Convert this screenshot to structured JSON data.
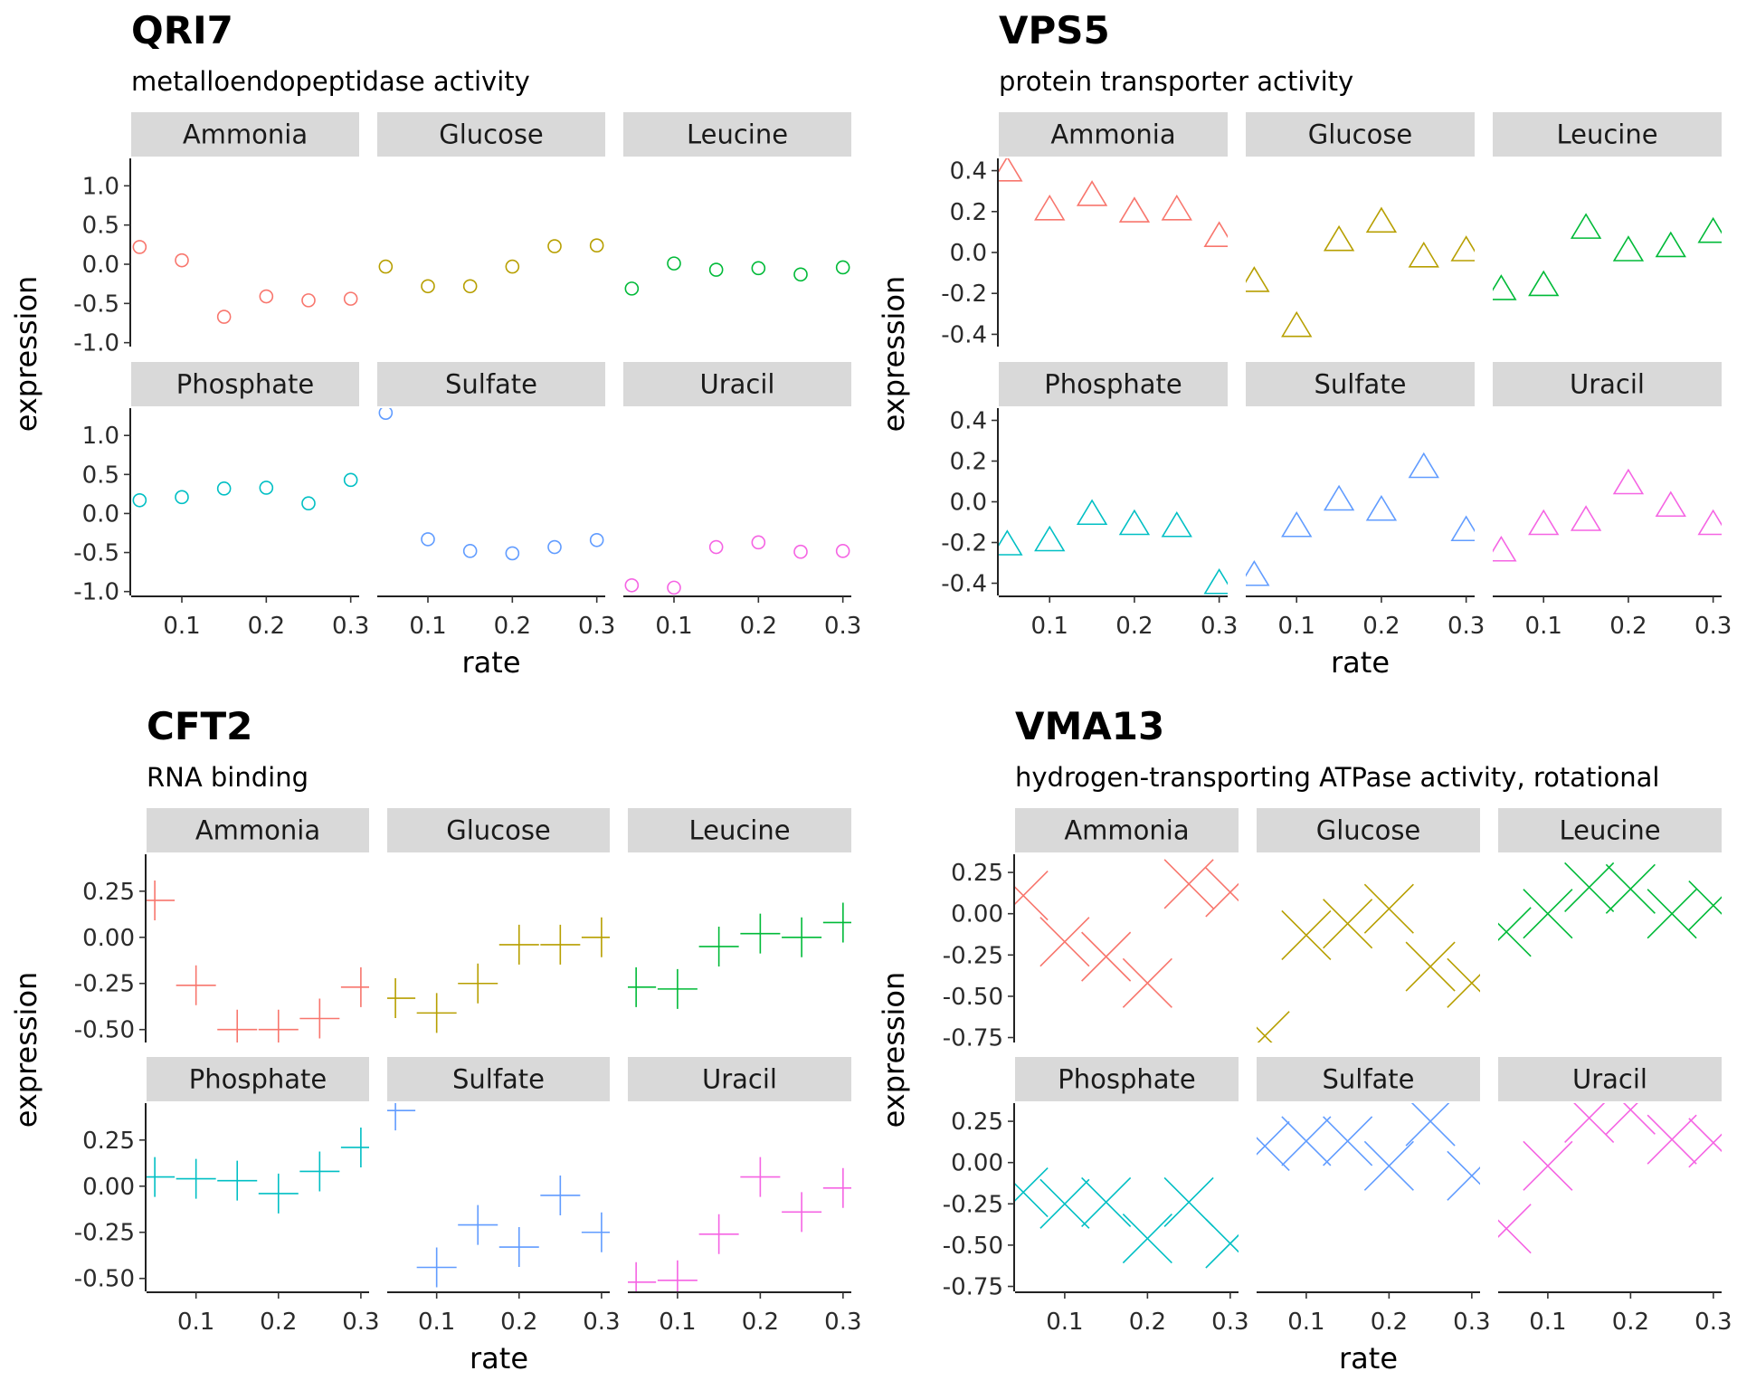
{
  "colors": {
    "Ammonia": "#F8766D",
    "Glucose": "#B79F00",
    "Leucine": "#00BA38",
    "Phosphate": "#00BFC4",
    "Sulfate": "#619CFF",
    "Uracil": "#F564E3",
    "strip_fill": "#D9D9D9"
  },
  "chart_data": [
    {
      "type": "scatter",
      "title": "QRI7",
      "subtitle": "metalloendopeptidase activity",
      "xlabel": "rate",
      "ylabel": "expression",
      "shape": "circle",
      "facets": [
        "Ammonia",
        "Glucose",
        "Leucine",
        "Phosphate",
        "Sulfate",
        "Uracil"
      ],
      "x": [
        0.05,
        0.1,
        0.15,
        0.2,
        0.25,
        0.3
      ],
      "xlim": [
        0.04,
        0.31
      ],
      "xticks": [
        "0.1",
        "0.2",
        "0.3"
      ],
      "xtick_values": [
        0.1,
        0.2,
        0.3
      ],
      "ylim": [
        -1.05,
        1.35
      ],
      "yticks": [
        "-1.0",
        "-0.5",
        "0.0",
        "0.5",
        "1.0"
      ],
      "ytick_values": [
        -1.0,
        -0.5,
        0.0,
        0.5,
        1.0
      ],
      "series": [
        {
          "name": "Ammonia",
          "values": [
            0.22,
            0.05,
            -0.67,
            -0.41,
            -0.46,
            -0.44
          ]
        },
        {
          "name": "Glucose",
          "values": [
            -0.03,
            -0.28,
            -0.28,
            -0.03,
            0.23,
            0.24
          ]
        },
        {
          "name": "Leucine",
          "values": [
            -0.31,
            0.01,
            -0.07,
            -0.05,
            -0.13,
            -0.04
          ]
        },
        {
          "name": "Phosphate",
          "values": [
            0.17,
            0.21,
            0.32,
            0.33,
            0.13,
            0.43
          ]
        },
        {
          "name": "Sulfate",
          "values": [
            1.29,
            -0.33,
            -0.48,
            -0.51,
            -0.43,
            -0.34
          ]
        },
        {
          "name": "Uracil",
          "values": [
            -0.92,
            -0.95,
            -0.43,
            -0.37,
            -0.49,
            -0.48
          ]
        }
      ]
    },
    {
      "type": "scatter",
      "title": "VPS5",
      "subtitle": "protein transporter activity",
      "xlabel": "rate",
      "ylabel": "expression",
      "shape": "triangle",
      "facets": [
        "Ammonia",
        "Glucose",
        "Leucine",
        "Phosphate",
        "Sulfate",
        "Uracil"
      ],
      "x": [
        0.05,
        0.1,
        0.15,
        0.2,
        0.25,
        0.3
      ],
      "xlim": [
        0.04,
        0.31
      ],
      "xticks": [
        "0.1",
        "0.2",
        "0.3"
      ],
      "xtick_values": [
        0.1,
        0.2,
        0.3
      ],
      "ylim": [
        -0.46,
        0.46
      ],
      "yticks": [
        "-0.4",
        "-0.2",
        "0.0",
        "0.2",
        "0.4"
      ],
      "ytick_values": [
        -0.4,
        -0.2,
        0.0,
        0.2,
        0.4
      ],
      "series": [
        {
          "name": "Ammonia",
          "values": [
            0.4,
            0.21,
            0.28,
            0.2,
            0.21,
            0.08
          ]
        },
        {
          "name": "Glucose",
          "values": [
            -0.14,
            -0.36,
            0.06,
            0.15,
            -0.02,
            0.01
          ]
        },
        {
          "name": "Leucine",
          "values": [
            -0.18,
            -0.16,
            0.12,
            0.01,
            0.03,
            0.1
          ]
        },
        {
          "name": "Phosphate",
          "values": [
            -0.21,
            -0.19,
            -0.06,
            -0.11,
            -0.12,
            -0.4
          ]
        },
        {
          "name": "Sulfate",
          "values": [
            -0.36,
            -0.12,
            0.01,
            -0.04,
            0.17,
            -0.14
          ]
        },
        {
          "name": "Uracil",
          "values": [
            -0.24,
            -0.11,
            -0.09,
            0.09,
            -0.02,
            -0.11
          ]
        }
      ]
    },
    {
      "type": "scatter",
      "title": "CFT2",
      "subtitle": "RNA binding",
      "xlabel": "rate",
      "ylabel": "expression",
      "shape": "plus",
      "facets": [
        "Ammonia",
        "Glucose",
        "Leucine",
        "Phosphate",
        "Sulfate",
        "Uracil"
      ],
      "x": [
        0.05,
        0.1,
        0.15,
        0.2,
        0.25,
        0.3
      ],
      "xlim": [
        0.04,
        0.31
      ],
      "xticks": [
        "0.1",
        "0.2",
        "0.3"
      ],
      "xtick_values": [
        0.1,
        0.2,
        0.3
      ],
      "ylim": [
        -0.57,
        0.45
      ],
      "yticks": [
        "-0.50",
        "-0.25",
        "0.00",
        "0.25"
      ],
      "ytick_values": [
        -0.5,
        -0.25,
        0.0,
        0.25
      ],
      "series": [
        {
          "name": "Ammonia",
          "values": [
            0.2,
            -0.26,
            -0.5,
            -0.5,
            -0.44,
            -0.27
          ]
        },
        {
          "name": "Glucose",
          "values": [
            -0.33,
            -0.41,
            -0.25,
            -0.04,
            -0.04,
            0.0
          ]
        },
        {
          "name": "Leucine",
          "values": [
            -0.27,
            -0.28,
            -0.05,
            0.02,
            0.0,
            0.08
          ]
        },
        {
          "name": "Phosphate",
          "values": [
            0.05,
            0.04,
            0.03,
            -0.04,
            0.08,
            0.21
          ]
        },
        {
          "name": "Sulfate",
          "values": [
            0.41,
            -0.44,
            -0.21,
            -0.33,
            -0.05,
            -0.25
          ]
        },
        {
          "name": "Uracil",
          "values": [
            -0.52,
            -0.51,
            -0.26,
            0.05,
            -0.14,
            -0.01
          ]
        }
      ]
    },
    {
      "type": "scatter",
      "title": "VMA13",
      "subtitle": "hydrogen-transporting ATPase activity, rotational",
      "xlabel": "rate",
      "ylabel": "expression",
      "shape": "cross",
      "facets": [
        "Ammonia",
        "Glucose",
        "Leucine",
        "Phosphate",
        "Sulfate",
        "Uracil"
      ],
      "x": [
        0.05,
        0.1,
        0.15,
        0.2,
        0.25,
        0.3
      ],
      "xlim": [
        0.04,
        0.31
      ],
      "xticks": [
        "0.1",
        "0.2",
        "0.3"
      ],
      "xtick_values": [
        0.1,
        0.2,
        0.3
      ],
      "ylim": [
        -0.78,
        0.36
      ],
      "yticks": [
        "-0.75",
        "-0.50",
        "-0.25",
        "0.00",
        "0.25"
      ],
      "ytick_values": [
        -0.75,
        -0.5,
        -0.25,
        0.0,
        0.25
      ],
      "series": [
        {
          "name": "Ammonia",
          "values": [
            0.11,
            -0.17,
            -0.26,
            -0.42,
            0.18,
            0.13
          ]
        },
        {
          "name": "Glucose",
          "values": [
            -0.74,
            -0.13,
            -0.06,
            0.03,
            -0.32,
            -0.42
          ]
        },
        {
          "name": "Leucine",
          "values": [
            -0.11,
            0.0,
            0.16,
            0.15,
            0.0,
            0.05
          ]
        },
        {
          "name": "Phosphate",
          "values": [
            -0.18,
            -0.25,
            -0.24,
            -0.46,
            -0.24,
            -0.49
          ]
        },
        {
          "name": "Sulfate",
          "values": [
            0.1,
            0.13,
            0.13,
            -0.02,
            0.25,
            -0.08
          ]
        },
        {
          "name": "Uracil",
          "values": [
            -0.4,
            -0.02,
            0.27,
            0.32,
            0.14,
            0.12
          ]
        }
      ]
    }
  ]
}
